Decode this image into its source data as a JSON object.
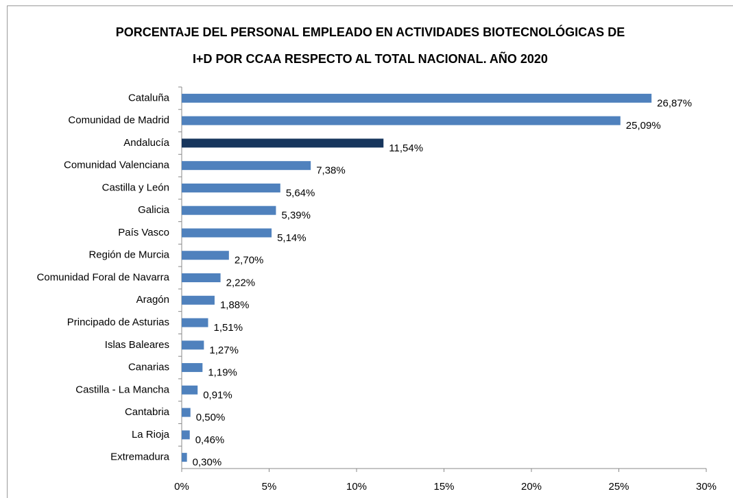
{
  "chart_data": {
    "type": "bar",
    "orientation": "horizontal",
    "title": [
      "PORCENTAJE DEL PERSONAL EMPLEADO EN ACTIVIDADES BIOTECNOLÓGICAS DE",
      "I+D POR CCAA RESPECTO AL TOTAL NACIONAL. AÑO 2020"
    ],
    "categories": [
      "Cataluña",
      "Comunidad de Madrid",
      "Andalucía",
      "Comunidad Valenciana",
      "Castilla y León",
      "Galicia",
      "País Vasco",
      "Región de Murcia",
      "Comunidad Foral de Navarra",
      "Aragón",
      "Principado de Asturias",
      "Islas Baleares",
      "Canarias",
      "Castilla - La Mancha",
      "Cantabria",
      "La Rioja",
      "Extremadura"
    ],
    "values": [
      26.87,
      25.09,
      11.54,
      7.38,
      5.64,
      5.39,
      5.14,
      2.7,
      2.22,
      1.88,
      1.51,
      1.27,
      1.19,
      0.91,
      0.5,
      0.46,
      0.3
    ],
    "value_labels": [
      "26,87%",
      "25,09%",
      "11,54%",
      "7,38%",
      "5,64%",
      "5,39%",
      "5,14%",
      "2,70%",
      "2,22%",
      "1,88%",
      "1,51%",
      "1,27%",
      "1,19%",
      "0,91%",
      "0,50%",
      "0,46%",
      "0,30%"
    ],
    "colors": [
      "#4f81bd",
      "#4f81bd",
      "#17365d",
      "#4f81bd",
      "#4f81bd",
      "#4f81bd",
      "#4f81bd",
      "#4f81bd",
      "#4f81bd",
      "#4f81bd",
      "#4f81bd",
      "#4f81bd",
      "#4f81bd",
      "#4f81bd",
      "#4f81bd",
      "#4f81bd",
      "#4f81bd"
    ],
    "xlim": [
      0,
      30
    ],
    "xticks": [
      {
        "value": 0,
        "label": "0%"
      },
      {
        "value": 5,
        "label": "5%"
      },
      {
        "value": 10,
        "label": "10%"
      },
      {
        "value": 15,
        "label": "15%"
      },
      {
        "value": 20,
        "label": "20%"
      },
      {
        "value": 25,
        "label": "25%"
      },
      {
        "value": 30,
        "label": "30%"
      }
    ],
    "grid": false
  }
}
